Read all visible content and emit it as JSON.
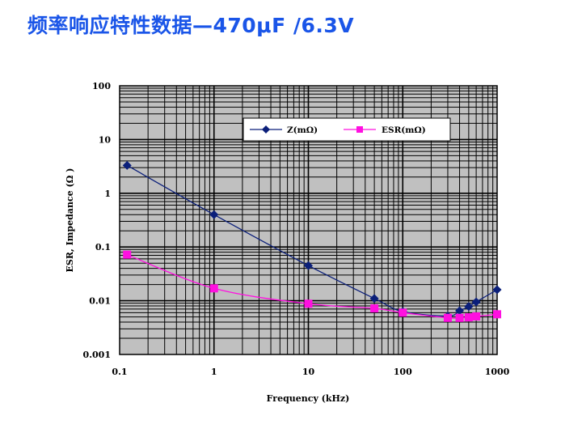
{
  "page": {
    "title": "频率响应特性数据—470μF /6.3V"
  },
  "chart_data": {
    "type": "line",
    "xscale": "log",
    "yscale": "log",
    "xlim": [
      0.1,
      1000
    ],
    "ylim": [
      0.001,
      100
    ],
    "xlabel": "Frequency (kHz)",
    "ylabel": "ESR, Impedance (Ω )",
    "x_tick_labels": [
      "0.1",
      "1",
      "10",
      "100",
      "1000"
    ],
    "y_tick_labels": [
      "100",
      "10",
      "1",
      "0.1",
      "0.01",
      "0.001"
    ],
    "grid": true,
    "plot_background": "#c0c0c0",
    "legend_position": "top-right",
    "series": [
      {
        "name": "Z(mΩ)",
        "color": "#0b1f7a",
        "marker": "diamond",
        "x": [
          0.12,
          1,
          10,
          50,
          100,
          300,
          400,
          500,
          600,
          1000
        ],
        "y": [
          3.3,
          0.4,
          0.045,
          0.011,
          0.0063,
          0.0052,
          0.0065,
          0.0078,
          0.0095,
          0.016
        ]
      },
      {
        "name": "ESR(mΩ)",
        "color": "#ff10e0",
        "marker": "square",
        "x": [
          0.12,
          1,
          10,
          50,
          100,
          300,
          400,
          500,
          600,
          1000
        ],
        "y": [
          0.072,
          0.017,
          0.0088,
          0.0072,
          0.006,
          0.0048,
          0.0048,
          0.0049,
          0.0051,
          0.0056
        ]
      }
    ]
  }
}
